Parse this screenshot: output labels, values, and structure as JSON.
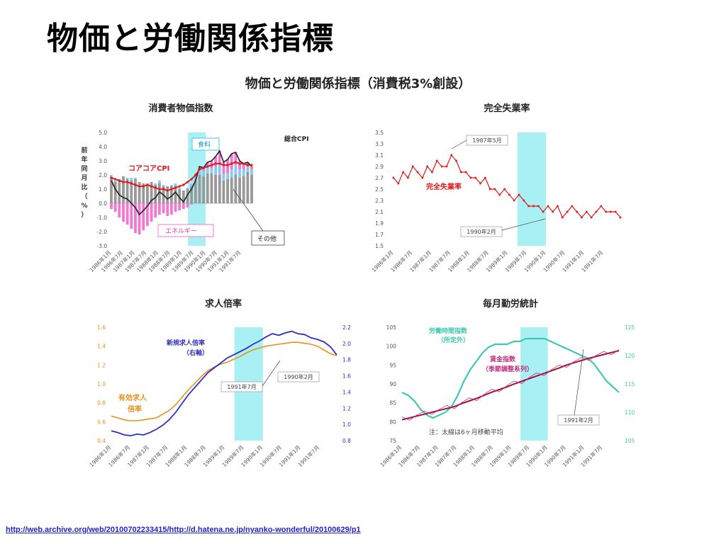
{
  "slide": {
    "title": "物価と労働関係指標",
    "source_url": "http://web.archive.org/web/20100702233415/http://d.hatena.ne.jp/nyanko-wonderful/20100629/p1"
  },
  "figure": {
    "title": "物価と労働関係指標（消費税3%創設）"
  },
  "colors": {
    "red": "#e01818",
    "pink": "#f07ad0",
    "lightblue": "#8ec8f0",
    "gray": "#999999",
    "black": "#222222",
    "orange": "#e89020",
    "navy": "#3030c0",
    "teal": "#40c8b0",
    "magenta": "#c03080",
    "darkred": "#a01040",
    "shade": "#a8f0f4"
  },
  "chart_data": [
    {
      "type": "bar",
      "title": "消費者物価指数",
      "ylabel": "前年同月比（%）",
      "ylim": [
        -3.0,
        5.0
      ],
      "yticks": [
        "5.0",
        "4.0",
        "3.0",
        "2.0",
        "1.0",
        "0.0",
        "-1.0",
        "-2.0",
        "-3.0"
      ],
      "xticks": [
        "1986年1月",
        "1986年7月",
        "1987年1月",
        "1987年7月",
        "1988年1月",
        "1988年7月",
        "1989年1月",
        "1989年7月",
        "1990年1月",
        "1990年7月",
        "1991年1月",
        "1991年7月"
      ],
      "shade": [
        1989.25,
        1990.0
      ],
      "x_start": 1986.0,
      "x_end": 1991.95,
      "series": [
        {
          "name": "総合CPI",
          "kind": "line",
          "values": [
            1.6,
            1.0,
            0.6,
            0.4,
            0.3,
            0.0,
            -0.3,
            -0.8,
            -0.5,
            -0.2,
            0.2,
            0.4,
            0.8,
            0.6,
            0.3,
            0.5,
            0.8,
            0.4,
            0.1,
            0.6,
            1.0,
            1.6,
            2.6,
            2.5,
            2.9,
            3.0,
            3.3,
            3.7,
            2.9,
            3.1,
            3.5,
            3.6,
            3.0,
            2.8,
            2.9,
            2.6
          ]
        },
        {
          "name": "コアコアCPI",
          "kind": "line",
          "values": [
            1.8,
            1.7,
            1.6,
            1.5,
            1.5,
            1.4,
            1.3,
            1.2,
            1.2,
            1.3,
            1.2,
            1.1,
            1.0,
            1.0,
            0.9,
            1.0,
            1.1,
            1.2,
            1.3,
            1.5,
            1.7,
            2.0,
            2.4,
            2.5,
            2.6,
            2.7,
            2.8,
            2.8,
            2.7,
            2.7,
            2.8,
            2.9,
            2.8,
            2.8,
            2.7,
            2.7
          ]
        },
        {
          "name": "食料",
          "kind": "bar",
          "values": [
            0.2,
            0.1,
            -0.1,
            -0.2,
            0.1,
            0.2,
            0.1,
            -0.1,
            0.0,
            0.1,
            0.0,
            0.1,
            0.2,
            0.1,
            0.0,
            0.1,
            0.2,
            0.1,
            0.0,
            0.1,
            0.2,
            0.4,
            0.5,
            0.4,
            0.5,
            0.4,
            0.6,
            0.8,
            0.5,
            0.4,
            0.6,
            0.7,
            0.6,
            0.5,
            0.4,
            0.4
          ]
        },
        {
          "name": "エネルギー",
          "kind": "bar",
          "values": [
            -0.4,
            -0.6,
            -1.0,
            -1.3,
            -1.5,
            -1.8,
            -2.1,
            -2.2,
            -1.9,
            -1.6,
            -1.3,
            -1.0,
            -0.8,
            -0.7,
            -0.9,
            -0.8,
            -0.6,
            -0.5,
            -0.4,
            -0.3,
            -0.1,
            0.0,
            0.1,
            0.2,
            0.3,
            0.5,
            0.7,
            0.9,
            0.8,
            1.0,
            1.1,
            0.9,
            0.6,
            0.4,
            0.3,
            0.2
          ]
        },
        {
          "name": "その他",
          "kind": "bar",
          "values": [
            1.8,
            1.5,
            1.7,
            1.9,
            1.7,
            1.6,
            1.7,
            1.5,
            1.4,
            1.3,
            1.5,
            1.3,
            1.4,
            1.2,
            1.2,
            1.2,
            1.2,
            1.0,
            0.9,
            1.0,
            1.2,
            1.6,
            2.0,
            1.9,
            2.1,
            2.1,
            2.0,
            2.0,
            1.6,
            1.7,
            1.8,
            2.0,
            1.8,
            1.9,
            2.2,
            2.0
          ]
        }
      ],
      "annotations": [
        "総合CPI",
        "食料",
        "コアコアCPI",
        "エネルギー",
        "その他"
      ]
    },
    {
      "type": "line",
      "title": "完全失業率",
      "ylim": [
        1.5,
        3.5
      ],
      "yticks": [
        "3.5",
        "3.3",
        "3.1",
        "2.9",
        "2.7",
        "2.5",
        "2.3",
        "2.1",
        "1.9",
        "1.7",
        "1.5"
      ],
      "xticks": [
        "1986年1月",
        "1986年7月",
        "1987年1月",
        "1987年7月",
        "1988年1月",
        "1988年7月",
        "1989年1月",
        "1989年7月",
        "1990年1月",
        "1990年7月",
        "1991年1月",
        "1991年7月"
      ],
      "shade": [
        1989.25,
        1990.0
      ],
      "x_start": 1986.0,
      "x_end": 1991.95,
      "series": [
        {
          "name": "完全失業率",
          "values": [
            2.7,
            2.6,
            2.8,
            2.7,
            2.9,
            2.8,
            2.7,
            2.9,
            2.8,
            3.0,
            2.9,
            2.9,
            3.1,
            3.0,
            2.8,
            2.8,
            2.7,
            2.7,
            2.6,
            2.7,
            2.5,
            2.5,
            2.4,
            2.5,
            2.4,
            2.3,
            2.4,
            2.3,
            2.2,
            2.2,
            2.2,
            2.1,
            2.2,
            2.1,
            2.2,
            2.0,
            2.1,
            2.2,
            2.1,
            2.0,
            2.1,
            2.0,
            2.1,
            2.2,
            2.1,
            2.1,
            2.1,
            2.0
          ]
        }
      ],
      "annotations": [
        "1987年5月",
        "完全失業率",
        "1990年2月"
      ]
    },
    {
      "type": "line",
      "title": "求人倍率",
      "ylim_left": [
        0.4,
        1.6
      ],
      "yticks_left": [
        "1.6",
        "1.4",
        "1.2",
        "1.0",
        "0.8",
        "0.6",
        "0.4"
      ],
      "ylim_right": [
        0.8,
        2.2
      ],
      "yticks_right": [
        "2.2",
        "2.0",
        "1.8",
        "1.6",
        "1.4",
        "1.2",
        "1.0",
        "0.8"
      ],
      "xticks": [
        "1986年1月",
        "1986年7月",
        "1987年1月",
        "1987年7月",
        "1988年1月",
        "1988年7月",
        "1989年1月",
        "1989年7月",
        "1990年1月",
        "1990年7月",
        "1991年1月",
        "1991年7月"
      ],
      "shade": [
        1989.25,
        1990.0
      ],
      "x_start": 1986.0,
      "x_end": 1991.95,
      "series": [
        {
          "name": "有効求人倍率",
          "axis": "left",
          "values": [
            0.66,
            0.64,
            0.62,
            0.61,
            0.61,
            0.62,
            0.63,
            0.64,
            0.68,
            0.72,
            0.78,
            0.86,
            0.94,
            1.01,
            1.08,
            1.14,
            1.18,
            1.21,
            1.23,
            1.26,
            1.29,
            1.33,
            1.36,
            1.38,
            1.4,
            1.41,
            1.42,
            1.43,
            1.44,
            1.44,
            1.43,
            1.42,
            1.4,
            1.36,
            1.32,
            1.3
          ]
        },
        {
          "name": "新規求人倍率（右軸）",
          "axis": "right",
          "values": [
            0.92,
            0.9,
            0.87,
            0.86,
            0.88,
            0.87,
            0.9,
            0.94,
            0.99,
            1.06,
            1.15,
            1.26,
            1.37,
            1.46,
            1.55,
            1.64,
            1.7,
            1.76,
            1.82,
            1.86,
            1.9,
            1.94,
            1.99,
            2.03,
            2.08,
            2.12,
            2.1,
            2.13,
            2.15,
            2.12,
            2.11,
            2.07,
            2.05,
            2.02,
            1.96,
            1.86
          ]
        }
      ],
      "annotations": [
        "新規求人倍率",
        "（右軸）",
        "有効求人",
        "倍率",
        "1991年7月",
        "1990年2月"
      ]
    },
    {
      "type": "line",
      "title": "毎月勤労統計",
      "ylim_left": [
        75,
        105
      ],
      "yticks_left": [
        "105",
        "100",
        "95",
        "90",
        "85",
        "80",
        "75"
      ],
      "ylim_right": [
        105,
        125
      ],
      "yticks_right": [
        "125",
        "120",
        "115",
        "110",
        "105"
      ],
      "xticks": [
        "1986年1月",
        "1986年7月",
        "1987年1月",
        "1987年7月",
        "1988年1月",
        "1988年7月",
        "1989年1月",
        "1989年7月",
        "1990年1月",
        "1990年7月",
        "1991年1月",
        "1991年7月"
      ],
      "shade": [
        1989.25,
        1990.0
      ],
      "x_start": 1986.0,
      "x_end": 1991.95,
      "series": [
        {
          "name": "労働時間指数（所定外）",
          "axis": "right",
          "values": [
            113.5,
            113.0,
            112.0,
            110.5,
            109.5,
            109.0,
            109.5,
            110.0,
            111.0,
            113.0,
            115.5,
            117.5,
            119.0,
            120.5,
            121.5,
            122.0,
            122.0,
            122.0,
            122.5,
            122.5,
            123.0,
            123.0,
            123.0,
            123.0,
            122.5,
            122.0,
            121.5,
            121.0,
            120.5,
            120.0,
            119.5,
            118.5,
            117.0,
            115.5,
            114.5,
            113.5
          ]
        },
        {
          "name": "賃金指数（季節調整系列）",
          "axis": "left",
          "values": [
            80.5,
            81.0,
            81.5,
            82.0,
            82.5,
            83.0,
            83.5,
            84.0,
            84.8,
            85.5,
            86.2,
            87.0,
            87.8,
            88.5,
            89.2,
            90.0,
            90.7,
            91.4,
            92.1,
            92.8,
            93.5,
            94.2,
            95.0,
            95.6,
            96.2,
            96.8,
            97.3,
            97.8,
            98.3,
            98.8
          ]
        }
      ],
      "annotations": [
        "労働時間指数",
        "（所定外）",
        "賃金指数",
        "（季節調整系列）",
        "1991年2月",
        "注：太線は6ヶ月移動平均"
      ]
    }
  ]
}
